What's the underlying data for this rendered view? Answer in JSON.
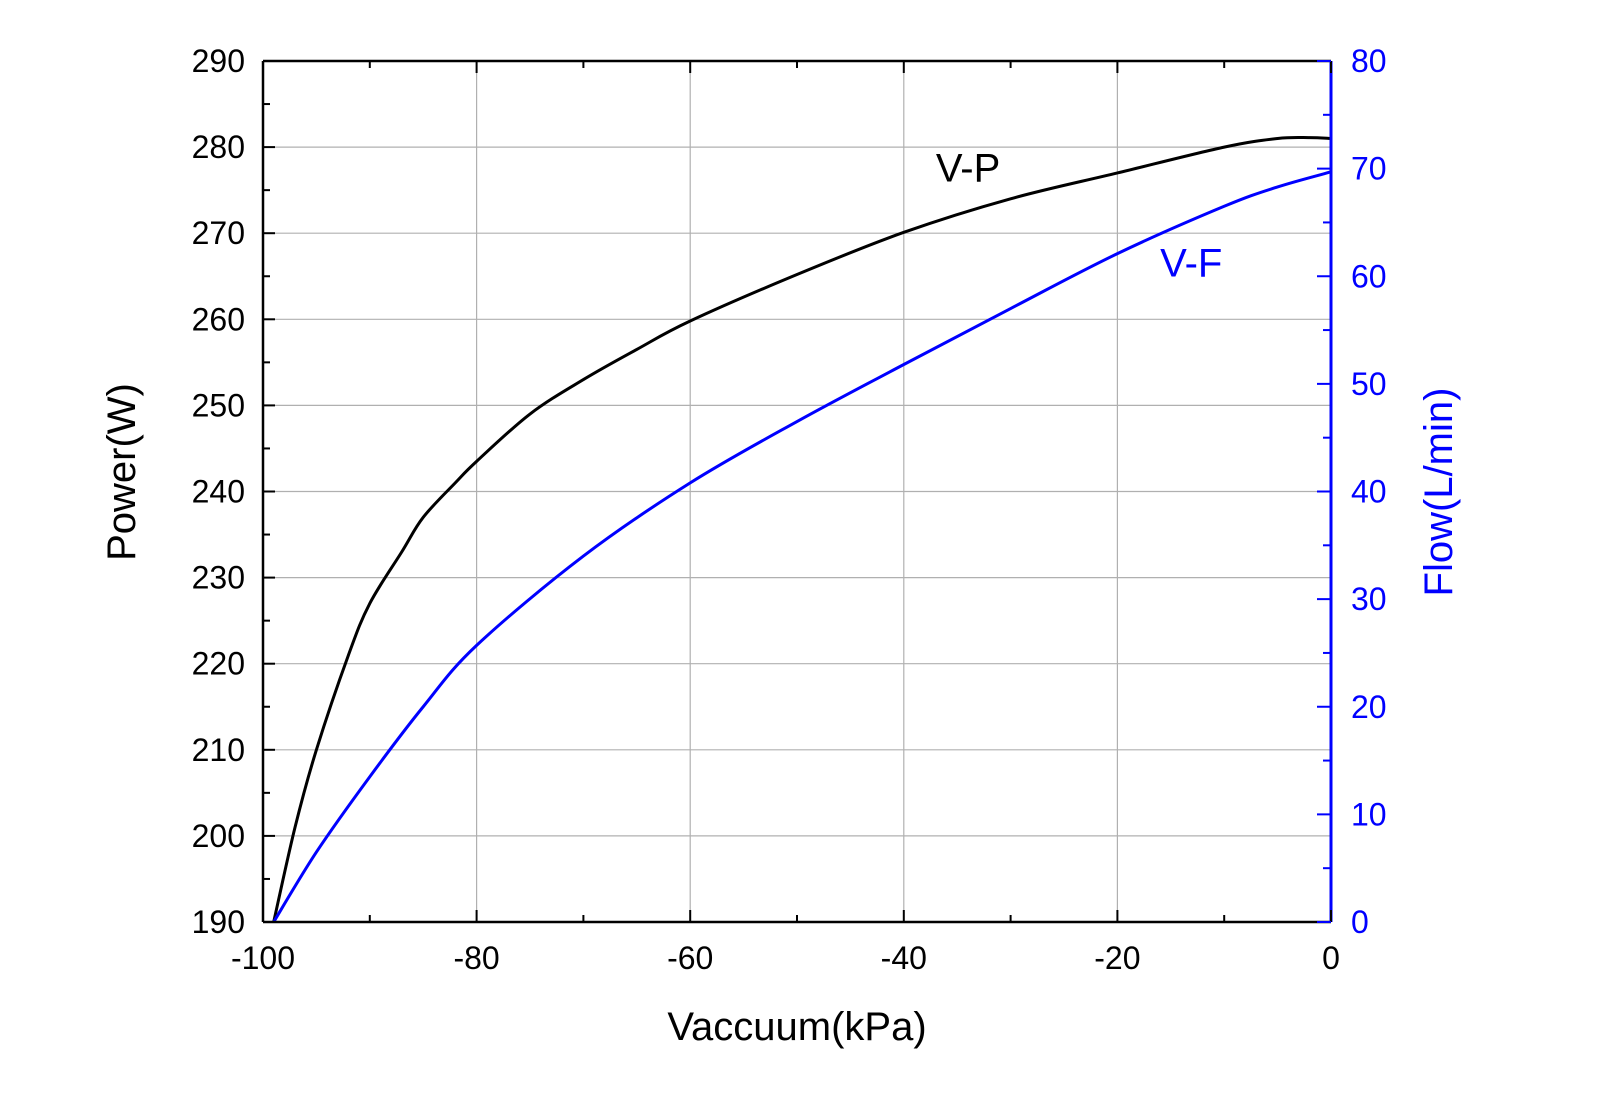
{
  "chart_data": {
    "type": "line",
    "title": "",
    "xlabel": "Vaccuum(kPa)",
    "ylabel": "Power(W)",
    "y2label": "Flow(L/min)",
    "xlim": [
      -100,
      0
    ],
    "ylim": [
      190,
      290
    ],
    "y2lim": [
      0,
      80
    ],
    "xticks": [
      -100,
      -80,
      -60,
      -40,
      -20,
      0
    ],
    "yticks": [
      190,
      200,
      210,
      220,
      230,
      240,
      250,
      260,
      270,
      280,
      290
    ],
    "y2ticks": [
      0,
      10,
      20,
      30,
      40,
      50,
      60,
      70,
      80
    ],
    "grid": true,
    "colors": {
      "power": "#000000",
      "flow": "#0000ff",
      "grid": "#b0b0b0"
    },
    "series": [
      {
        "name": "V-P",
        "axis": "left",
        "x": [
          -99,
          -97,
          -95,
          -92,
          -90,
          -87,
          -85,
          -82,
          -80,
          -75,
          -70,
          -65,
          -60,
          -50,
          -40,
          -30,
          -20,
          -10,
          -5,
          -2,
          0
        ],
        "y": [
          190,
          201,
          210,
          221,
          227,
          233,
          237,
          241,
          243.5,
          249,
          253,
          256.5,
          259.8,
          265.2,
          270.1,
          274,
          277,
          280,
          281,
          281.1,
          281
        ]
      },
      {
        "name": "V-F",
        "axis": "right",
        "x": [
          -99,
          -95,
          -90,
          -85,
          -80,
          -70,
          -60,
          -50,
          -40,
          -30,
          -20,
          -10,
          -5,
          0
        ],
        "y": [
          0,
          6.5,
          13.5,
          20,
          25.7,
          34,
          40.8,
          46.5,
          51.8,
          57,
          62.1,
          66.5,
          68.3,
          69.7
        ]
      }
    ],
    "annotations": [
      {
        "text": "V-P",
        "x": -37,
        "y": 276,
        "axis": "left"
      },
      {
        "text": "V-F",
        "x": -16,
        "y": 60,
        "axis": "right"
      }
    ]
  }
}
